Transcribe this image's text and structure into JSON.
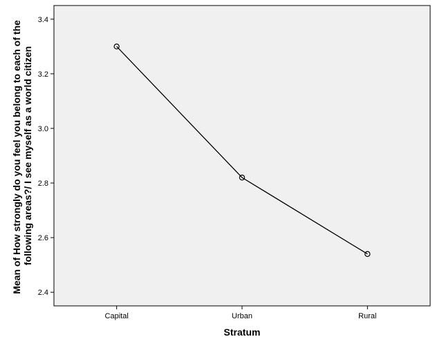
{
  "chart_data": {
    "type": "line",
    "categories": [
      "Capital",
      "Urban",
      "Rural"
    ],
    "values": [
      3.3,
      2.82,
      2.54
    ],
    "xlabel": "Stratum",
    "ylabel_lines": [
      "Mean of How strongly do you feel you belong to each of the",
      "following areas?/ I see myself as a world citizen"
    ],
    "ylim": [
      2.35,
      3.45
    ],
    "yticks": [
      2.4,
      2.6,
      2.8,
      3.0,
      3.2,
      3.4
    ],
    "ytick_labels": [
      "2.4",
      "2.6",
      "2.8",
      "3.0",
      "3.2",
      "3.4"
    ],
    "grid": false,
    "legend": "none",
    "marker": "open-circle",
    "colors": {
      "plot_background": "#f0f0f0",
      "line": "#000000",
      "frame": "#000000"
    }
  }
}
